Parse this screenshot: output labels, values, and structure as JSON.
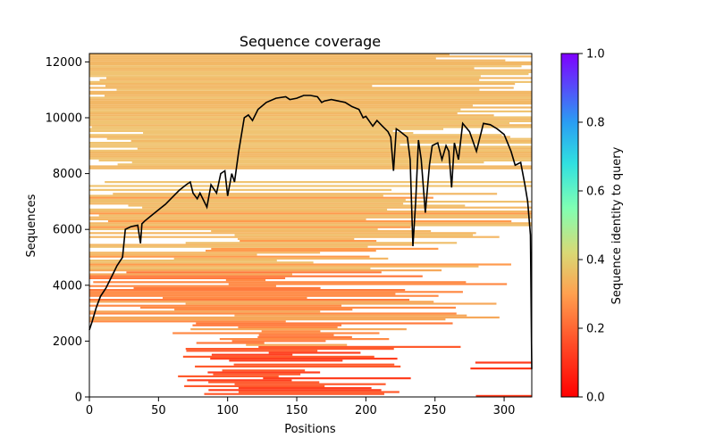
{
  "chart_data": {
    "type": "heatmap",
    "title": "Sequence coverage",
    "xlabel": "Positions",
    "ylabel": "Sequences",
    "xlim": [
      0,
      320
    ],
    "ylim": [
      0,
      12300
    ],
    "xticks": [
      "0",
      "50",
      "100",
      "150",
      "200",
      "250",
      "300"
    ],
    "yticks": [
      "0",
      "2000",
      "4000",
      "6000",
      "8000",
      "10000",
      "12000"
    ],
    "grid": false,
    "colorbar": {
      "label": "Sequence identity to query",
      "range": [
        0,
        1
      ],
      "ticks": [
        "0.0",
        "0.2",
        "0.4",
        "0.6",
        "0.8",
        "1.0"
      ],
      "colormap": "rainbow_r"
    },
    "coverage_line": {
      "name": "coverage",
      "color": "#000000",
      "points": [
        [
          0,
          2400
        ],
        [
          2,
          2700
        ],
        [
          5,
          3200
        ],
        [
          8,
          3600
        ],
        [
          12,
          3900
        ],
        [
          16,
          4300
        ],
        [
          20,
          4700
        ],
        [
          24,
          5000
        ],
        [
          26,
          6000
        ],
        [
          30,
          6100
        ],
        [
          35,
          6150
        ],
        [
          37,
          5500
        ],
        [
          38,
          6200
        ],
        [
          40,
          6300
        ],
        [
          45,
          6500
        ],
        [
          50,
          6700
        ],
        [
          55,
          6900
        ],
        [
          60,
          7150
        ],
        [
          65,
          7400
        ],
        [
          70,
          7600
        ],
        [
          73,
          7700
        ],
        [
          75,
          7300
        ],
        [
          78,
          7100
        ],
        [
          80,
          7300
        ],
        [
          85,
          6800
        ],
        [
          88,
          7600
        ],
        [
          92,
          7300
        ],
        [
          95,
          8000
        ],
        [
          98,
          8100
        ],
        [
          100,
          7200
        ],
        [
          103,
          8000
        ],
        [
          105,
          7700
        ],
        [
          108,
          8800
        ],
        [
          112,
          10000
        ],
        [
          115,
          10100
        ],
        [
          118,
          9900
        ],
        [
          122,
          10300
        ],
        [
          128,
          10550
        ],
        [
          135,
          10700
        ],
        [
          142,
          10750
        ],
        [
          145,
          10650
        ],
        [
          150,
          10700
        ],
        [
          155,
          10800
        ],
        [
          160,
          10800
        ],
        [
          165,
          10750
        ],
        [
          168,
          10550
        ],
        [
          170,
          10600
        ],
        [
          175,
          10650
        ],
        [
          180,
          10600
        ],
        [
          185,
          10550
        ],
        [
          190,
          10400
        ],
        [
          195,
          10300
        ],
        [
          198,
          10000
        ],
        [
          200,
          10050
        ],
        [
          205,
          9700
        ],
        [
          208,
          9900
        ],
        [
          212,
          9700
        ],
        [
          216,
          9500
        ],
        [
          218,
          9300
        ],
        [
          220,
          8100
        ],
        [
          222,
          9600
        ],
        [
          225,
          9500
        ],
        [
          230,
          9300
        ],
        [
          232,
          8500
        ],
        [
          234,
          5400
        ],
        [
          236,
          7000
        ],
        [
          238,
          9200
        ],
        [
          240,
          8500
        ],
        [
          243,
          6600
        ],
        [
          246,
          8300
        ],
        [
          248,
          9000
        ],
        [
          252,
          9100
        ],
        [
          255,
          8500
        ],
        [
          258,
          9000
        ],
        [
          260,
          8800
        ],
        [
          262,
          7500
        ],
        [
          264,
          9100
        ],
        [
          267,
          8500
        ],
        [
          270,
          9800
        ],
        [
          275,
          9500
        ],
        [
          280,
          8800
        ],
        [
          285,
          9800
        ],
        [
          290,
          9750
        ],
        [
          295,
          9600
        ],
        [
          300,
          9400
        ],
        [
          305,
          8800
        ],
        [
          308,
          8300
        ],
        [
          312,
          8400
        ],
        [
          315,
          7600
        ],
        [
          317,
          7000
        ],
        [
          319,
          5800
        ],
        [
          320,
          1000
        ]
      ]
    }
  }
}
